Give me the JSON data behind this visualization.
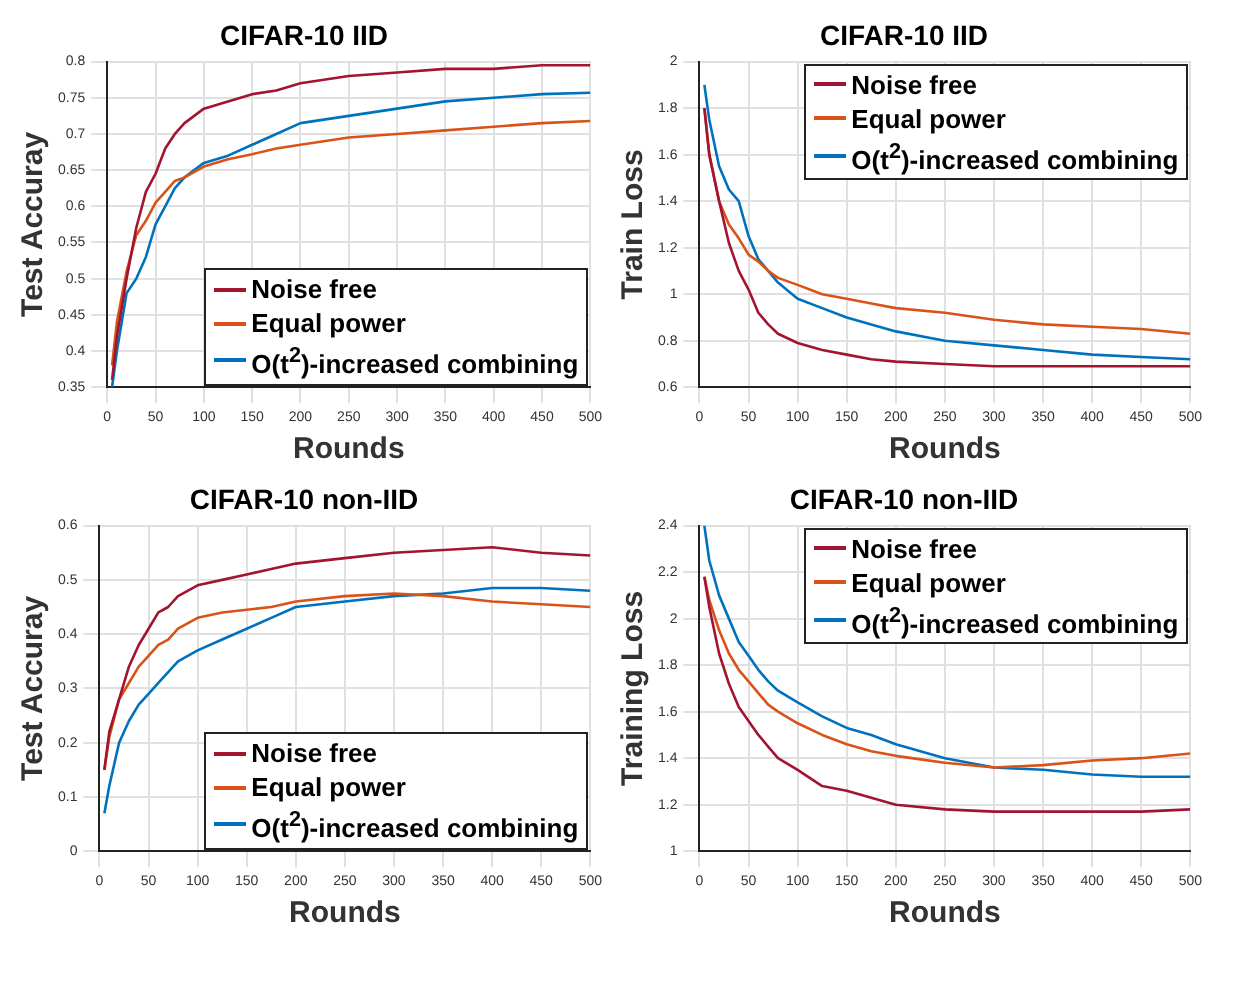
{
  "chart_data": [
    {
      "type": "line",
      "title": "CIFAR-10 IID",
      "xlabel": "Rounds",
      "ylabel": "Test Accuray",
      "x": [
        5,
        10,
        20,
        30,
        40,
        50,
        60,
        70,
        80,
        100,
        125,
        150,
        175,
        200,
        250,
        300,
        350,
        400,
        450,
        500
      ],
      "xlim": [
        0,
        500
      ],
      "xticks": [
        0,
        50,
        100,
        150,
        200,
        250,
        300,
        350,
        400,
        450,
        500
      ],
      "ylim": [
        0.35,
        0.8
      ],
      "yticks": [
        0.35,
        0.4,
        0.45,
        0.5,
        0.55,
        0.6,
        0.65,
        0.7,
        0.75,
        0.8
      ],
      "grid": true,
      "legend": "bottom right",
      "series": [
        {
          "name": "Noise free",
          "color": "#a2142f",
          "values": [
            0.36,
            0.42,
            0.5,
            0.57,
            0.62,
            0.645,
            0.68,
            0.7,
            0.715,
            0.735,
            0.745,
            0.755,
            0.76,
            0.77,
            0.78,
            0.785,
            0.79,
            0.79,
            0.795,
            0.795
          ]
        },
        {
          "name": "Equal power",
          "color": "#d95319",
          "values": [
            0.38,
            0.44,
            0.51,
            0.56,
            0.58,
            0.605,
            0.62,
            0.635,
            0.64,
            0.655,
            0.665,
            0.672,
            0.68,
            0.685,
            0.695,
            0.7,
            0.705,
            0.71,
            0.715,
            0.718
          ]
        },
        {
          "name": "O(t$^{2}$)-increased combining",
          "color": "#0072bd",
          "values": [
            0.35,
            0.4,
            0.48,
            0.5,
            0.53,
            0.575,
            0.6,
            0.625,
            0.64,
            0.66,
            0.67,
            0.685,
            0.7,
            0.715,
            0.725,
            0.735,
            0.745,
            0.75,
            0.755,
            0.757
          ]
        }
      ]
    },
    {
      "type": "line",
      "title": "CIFAR-10 IID",
      "xlabel": "Rounds",
      "ylabel": "Train Loss",
      "x": [
        5,
        10,
        20,
        30,
        40,
        50,
        60,
        70,
        80,
        100,
        125,
        150,
        175,
        200,
        250,
        300,
        350,
        400,
        450,
        500
      ],
      "xlim": [
        0,
        500
      ],
      "xticks": [
        0,
        50,
        100,
        150,
        200,
        250,
        300,
        350,
        400,
        450,
        500
      ],
      "ylim": [
        0.6,
        2
      ],
      "yticks": [
        0.6,
        0.8,
        1,
        1.2,
        1.4,
        1.6,
        1.8,
        2
      ],
      "grid": true,
      "legend": "top right",
      "series": [
        {
          "name": "Noise free",
          "color": "#a2142f",
          "values": [
            1.8,
            1.6,
            1.4,
            1.22,
            1.1,
            1.02,
            0.92,
            0.87,
            0.83,
            0.79,
            0.76,
            0.74,
            0.72,
            0.71,
            0.7,
            0.69,
            0.69,
            0.69,
            0.69,
            0.69
          ]
        },
        {
          "name": "Equal power",
          "color": "#d95319",
          "values": [
            1.8,
            1.6,
            1.4,
            1.3,
            1.24,
            1.17,
            1.14,
            1.1,
            1.07,
            1.04,
            1.0,
            0.98,
            0.96,
            0.94,
            0.92,
            0.89,
            0.87,
            0.86,
            0.85,
            0.83
          ]
        },
        {
          "name": "O(t$^{2}$)-increased combining",
          "color": "#0072bd",
          "values": [
            1.9,
            1.75,
            1.55,
            1.45,
            1.4,
            1.25,
            1.15,
            1.1,
            1.05,
            0.98,
            0.94,
            0.9,
            0.87,
            0.84,
            0.8,
            0.78,
            0.76,
            0.74,
            0.73,
            0.72
          ]
        }
      ]
    },
    {
      "type": "line",
      "title": "CIFAR-10 non-IID",
      "xlabel": "Rounds",
      "ylabel": "Test Accuray",
      "x": [
        5,
        10,
        20,
        30,
        40,
        50,
        60,
        70,
        80,
        100,
        125,
        150,
        175,
        200,
        250,
        300,
        350,
        400,
        450,
        500
      ],
      "xlim": [
        0,
        500
      ],
      "xticks": [
        0,
        50,
        100,
        150,
        200,
        250,
        300,
        350,
        400,
        450,
        500
      ],
      "ylim": [
        0,
        0.6
      ],
      "yticks": [
        0,
        0.1,
        0.2,
        0.3,
        0.4,
        0.5,
        0.6
      ],
      "grid": true,
      "legend": "bottom right",
      "series": [
        {
          "name": "Noise free",
          "color": "#a2142f",
          "values": [
            0.15,
            0.22,
            0.28,
            0.34,
            0.38,
            0.41,
            0.44,
            0.45,
            0.47,
            0.49,
            0.5,
            0.51,
            0.52,
            0.53,
            0.54,
            0.55,
            0.555,
            0.56,
            0.55,
            0.545
          ]
        },
        {
          "name": "Equal power",
          "color": "#d95319",
          "values": [
            0.15,
            0.21,
            0.28,
            0.31,
            0.34,
            0.36,
            0.38,
            0.39,
            0.41,
            0.43,
            0.44,
            0.445,
            0.45,
            0.46,
            0.47,
            0.475,
            0.47,
            0.46,
            0.455,
            0.45
          ]
        },
        {
          "name": "O(t$^{2}$)-increased combining",
          "color": "#0072bd",
          "values": [
            0.07,
            0.12,
            0.2,
            0.24,
            0.27,
            0.29,
            0.31,
            0.33,
            0.35,
            0.37,
            0.39,
            0.41,
            0.43,
            0.45,
            0.46,
            0.47,
            0.475,
            0.485,
            0.485,
            0.48
          ]
        }
      ]
    },
    {
      "type": "line",
      "title": "CIFAR-10 non-IID",
      "xlabel": "Rounds",
      "ylabel": "Training Loss",
      "x": [
        5,
        10,
        20,
        30,
        40,
        50,
        60,
        70,
        80,
        100,
        125,
        150,
        175,
        200,
        250,
        300,
        350,
        400,
        450,
        500
      ],
      "xlim": [
        0,
        500
      ],
      "xticks": [
        0,
        50,
        100,
        150,
        200,
        250,
        300,
        350,
        400,
        450,
        500
      ],
      "ylim": [
        1,
        2.4
      ],
      "yticks": [
        1,
        1.2,
        1.4,
        1.6,
        1.8,
        2,
        2.2,
        2.4
      ],
      "grid": true,
      "legend": "top right",
      "series": [
        {
          "name": "Noise free",
          "color": "#a2142f",
          "values": [
            2.18,
            2.05,
            1.85,
            1.72,
            1.62,
            1.56,
            1.5,
            1.45,
            1.4,
            1.35,
            1.28,
            1.26,
            1.23,
            1.2,
            1.18,
            1.17,
            1.17,
            1.17,
            1.17,
            1.18
          ]
        },
        {
          "name": "Equal power",
          "color": "#d95319",
          "values": [
            2.18,
            2.08,
            1.95,
            1.85,
            1.78,
            1.73,
            1.68,
            1.63,
            1.6,
            1.55,
            1.5,
            1.46,
            1.43,
            1.41,
            1.38,
            1.36,
            1.37,
            1.39,
            1.4,
            1.42
          ]
        },
        {
          "name": "O(t$^{2}$)-increased combining",
          "color": "#0072bd",
          "values": [
            2.4,
            2.25,
            2.1,
            2.0,
            1.9,
            1.84,
            1.78,
            1.73,
            1.69,
            1.64,
            1.58,
            1.53,
            1.5,
            1.46,
            1.4,
            1.36,
            1.35,
            1.33,
            1.32,
            1.32
          ]
        }
      ]
    }
  ]
}
